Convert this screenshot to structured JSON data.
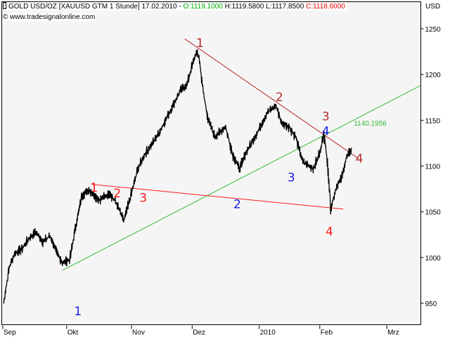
{
  "header": {
    "symbol_icon": "candle-icon",
    "title": "GOLD USD/OZ [XAUUSD GTM  1 Stunde] 17.02.2010 - ",
    "open": "O:1119.1000",
    "high": "H:1119.5800",
    "low": "L:1117.8500",
    "close": "C:1118.6000",
    "copyright": "© www.tradesignalonline.com",
    "currency": "USD"
  },
  "colors": {
    "background": "#f5f5f5",
    "price": "#000000",
    "open": "#00aa00",
    "close": "#ee0000",
    "dark_red": "#b52a2a",
    "red": "#ff1a1a",
    "blue": "#1a1ae6",
    "green": "#33bb33"
  },
  "chart_data": {
    "type": "line",
    "title": "GOLD USD/OZ hourly",
    "xlabel": "",
    "ylabel": "USD",
    "x_unit": "days since 1 Sep 2009",
    "xlim": [
      -0.5,
      196.5
    ],
    "ylim": [
      897,
      1277
    ],
    "x_ticks": [
      {
        "day": 0,
        "label": "Sep"
      },
      {
        "day": 30,
        "label": "Okt"
      },
      {
        "day": 60.5,
        "label": "Nov"
      },
      {
        "day": 89,
        "label": "Dez"
      },
      {
        "day": 120.5,
        "label": "2010"
      },
      {
        "day": 149,
        "label": "Feb"
      },
      {
        "day": 180.5,
        "label": "Mrz"
      }
    ],
    "y_ticks": [
      950,
      1000,
      1050,
      1100,
      1150,
      1200,
      1250
    ],
    "price": {
      "x": [
        0.3,
        3,
        5.6,
        8.9,
        12.2,
        15.5,
        18.8,
        22.1,
        25.4,
        28,
        31.4,
        33.7,
        37,
        40.3,
        45.2,
        50.2,
        53.5,
        56.8,
        60,
        63.4,
        66.7,
        70,
        73.3,
        76.6,
        79.9,
        83.2,
        86.5,
        88.8,
        90.8,
        92.1,
        94.1,
        96.4,
        99.7,
        104.6,
        107.9,
        111.2,
        114.5,
        119.5,
        124.4,
        128.4,
        131,
        134.3,
        137.6,
        140.9,
        145.9,
        149.2,
        150.8,
        152.5,
        154.1,
        156.8,
        159.1,
        161.4,
        164
      ],
      "y": [
        950,
        990,
        1005,
        1009,
        1021,
        1028,
        1017,
        1024,
        1005,
        994,
        998,
        1028,
        1067,
        1074,
        1063,
        1070,
        1059,
        1040,
        1067,
        1097,
        1113,
        1124,
        1136,
        1151,
        1166,
        1182,
        1189,
        1209,
        1224,
        1220,
        1182,
        1151,
        1132,
        1143,
        1113,
        1097,
        1116,
        1136,
        1159,
        1166,
        1147,
        1143,
        1132,
        1105,
        1097,
        1116,
        1136,
        1105,
        1053,
        1078,
        1086,
        1109,
        1118.6
      ]
    },
    "trendlines": [
      {
        "name": "upper-resistance",
        "color": "dark_red",
        "from": [
          85.5,
          1239
        ],
        "to": [
          167.3,
          1108
        ]
      },
      {
        "name": "support-uptrend",
        "color": "green",
        "from": [
          28,
          986
        ],
        "to": [
          196.4,
          1188
        ]
      },
      {
        "name": "lower-support",
        "color": "red",
        "from": [
          41.9,
          1080
        ],
        "to": [
          160,
          1053
        ]
      }
    ],
    "annotations": [
      {
        "text": "1140.1956",
        "color": "green",
        "at": [
          165,
          1144
        ]
      }
    ],
    "wave_labels": [
      {
        "text": "1",
        "color": "dark_red",
        "at": [
          92.7,
          1230
        ]
      },
      {
        "text": "2",
        "color": "dark_red",
        "at": [
          130,
          1171
        ]
      },
      {
        "text": "3",
        "color": "dark_red",
        "at": [
          151.8,
          1150
        ]
      },
      {
        "text": "4",
        "color": "dark_red",
        "at": [
          167.6,
          1104
        ]
      },
      {
        "text": "1",
        "color": "red",
        "at": [
          42.9,
          1072
        ]
      },
      {
        "text": "2",
        "color": "red",
        "at": [
          53.8,
          1066
        ]
      },
      {
        "text": "3",
        "color": "red",
        "at": [
          66,
          1061
        ]
      },
      {
        "text": "4",
        "color": "red",
        "at": [
          153.5,
          1024
        ]
      },
      {
        "text": "1",
        "color": "blue",
        "at": [
          35.3,
          937
        ]
      },
      {
        "text": "2",
        "color": "blue",
        "at": [
          110.2,
          1054
        ]
      },
      {
        "text": "3",
        "color": "blue",
        "at": [
          135.6,
          1083
        ]
      },
      {
        "text": "4",
        "color": "blue",
        "at": [
          151.8,
          1141
        ]
      }
    ]
  }
}
